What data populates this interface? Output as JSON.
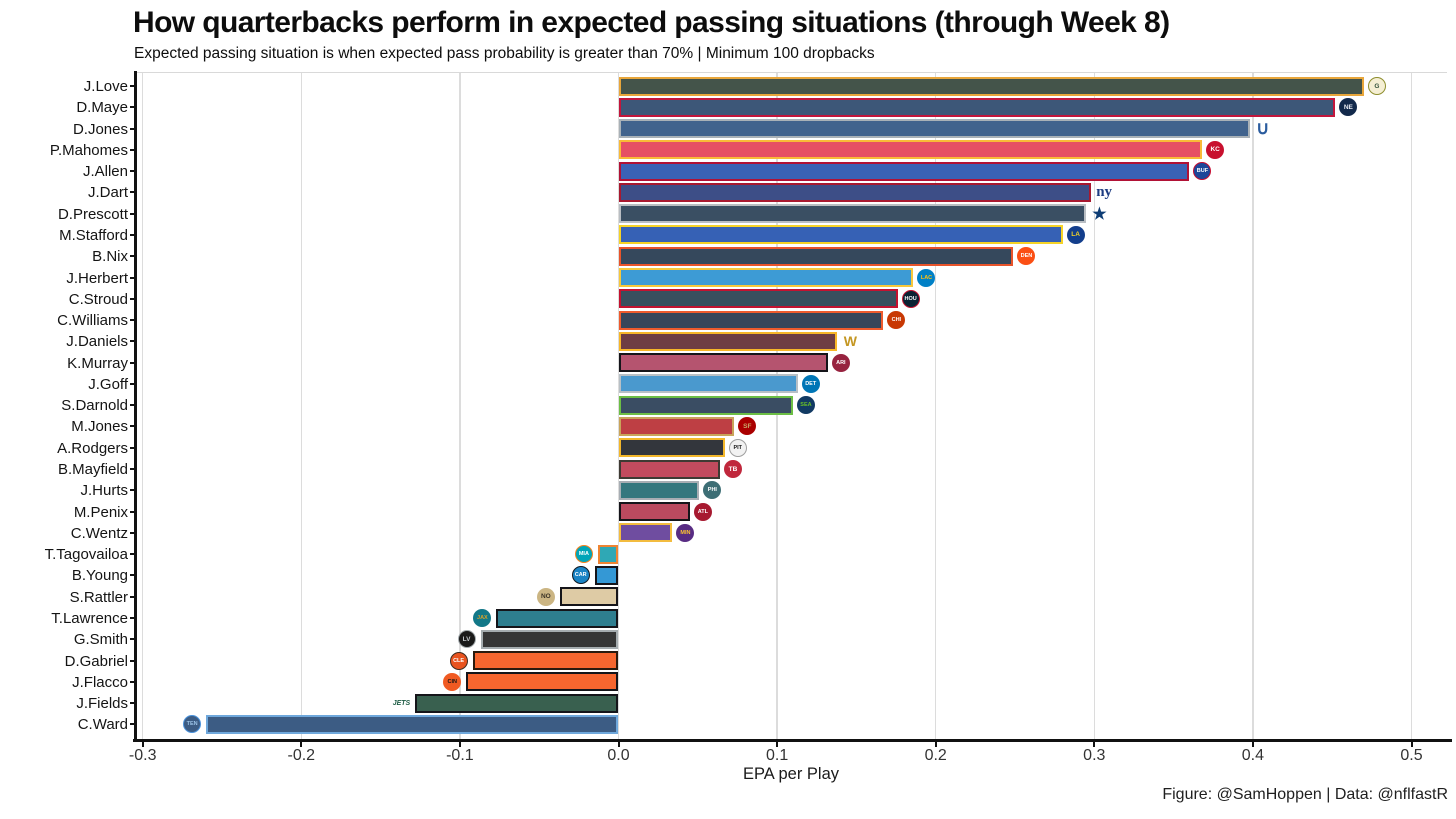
{
  "title": "How quarterbacks perform in expected passing situations (through Week 8)",
  "subtitle": "Expected passing situation is when expected pass probability is greater than 70% | Minimum 100 dropbacks",
  "caption": "Figure: @SamHoppen | Data: @nflfastR",
  "chart_data": {
    "type": "bar",
    "orientation": "horizontal",
    "title": "How quarterbacks perform in expected passing situations (through Week 8)",
    "subtitle": "Expected passing situation is when expected pass probability is greater than 70% | Minimum 100 dropbacks",
    "xlabel": "EPA per Play",
    "ylabel": "",
    "xlim": [
      -0.3,
      0.5
    ],
    "grid": "vertical",
    "legend": "none",
    "xticks": [
      -0.3,
      -0.2,
      -0.1,
      0.0,
      0.1,
      0.2,
      0.3,
      0.4,
      0.5
    ],
    "categories": [
      "J.Love",
      "D.Maye",
      "D.Jones",
      "P.Mahomes",
      "J.Allen",
      "J.Dart",
      "D.Prescott",
      "M.Stafford",
      "B.Nix",
      "J.Herbert",
      "C.Stroud",
      "C.Williams",
      "J.Daniels",
      "K.Murray",
      "J.Goff",
      "S.Darnold",
      "M.Jones",
      "A.Rodgers",
      "B.Mayfield",
      "J.Hurts",
      "M.Penix",
      "C.Wentz",
      "T.Tagovailoa",
      "B.Young",
      "S.Rattler",
      "T.Lawrence",
      "G.Smith",
      "D.Gabriel",
      "J.Flacco",
      "J.Fields",
      "C.Ward"
    ],
    "values": [
      0.47,
      0.452,
      0.398,
      0.368,
      0.36,
      0.298,
      0.295,
      0.28,
      0.249,
      0.186,
      0.176,
      0.167,
      0.138,
      0.132,
      0.113,
      0.11,
      0.073,
      0.067,
      0.064,
      0.051,
      0.045,
      0.034,
      -0.013,
      -0.015,
      -0.037,
      -0.077,
      -0.087,
      -0.092,
      -0.096,
      -0.128,
      -0.26
    ],
    "players": [
      {
        "name": "J.Love",
        "team": "Green Bay Packers",
        "abbr": "GB",
        "value": 0.47,
        "fill": "#44544A",
        "outline": "#E8A63B",
        "logo": {
          "type": "circle",
          "label": "G",
          "bg": "#F5EFD4",
          "fg": "#33523B",
          "border": "#8E8E2E"
        }
      },
      {
        "name": "D.Maye",
        "team": "New England Patriots",
        "abbr": "NE",
        "value": 0.452,
        "fill": "#3D5778",
        "outline": "#C2163C",
        "logo": {
          "type": "circle",
          "label": "NE",
          "bg": "#12294B",
          "fg": "#E6E9F0"
        }
      },
      {
        "name": "D.Jones",
        "team": "Indianapolis Colts",
        "abbr": "IND",
        "value": 0.398,
        "fill": "#41638D",
        "outline": "#A9B1B7",
        "logo": {
          "type": "text",
          "label": "∪",
          "fg": "#2B5C9E",
          "size": 18
        }
      },
      {
        "name": "P.Mahomes",
        "team": "Kansas City Chiefs",
        "abbr": "KC",
        "value": 0.368,
        "fill": "#E64F64",
        "outline": "#F9BA38",
        "logo": {
          "type": "circle",
          "label": "KC",
          "bg": "#C8102E",
          "fg": "#FFFFFF"
        }
      },
      {
        "name": "J.Allen",
        "team": "Buffalo Bills",
        "abbr": "BUF",
        "value": 0.36,
        "fill": "#3A62B5",
        "outline": "#B11236",
        "logo": {
          "type": "circle",
          "label": "BUF",
          "bg": "#1D4699",
          "fg": "#FFFFFF",
          "border": "#C60C30"
        }
      },
      {
        "name": "J.Dart",
        "team": "New York Giants",
        "abbr": "NYG",
        "value": 0.298,
        "fill": "#3D4E87",
        "outline": "#A71930",
        "logo": {
          "type": "text",
          "label": "ny",
          "fg": "#1E3C82",
          "size": 15,
          "serif": true
        }
      },
      {
        "name": "D.Prescott",
        "team": "Dallas Cowboys",
        "abbr": "DAL",
        "value": 0.295,
        "fill": "#3A4F63",
        "outline": "#B9BEC3",
        "logo": {
          "type": "text",
          "label": "★",
          "fg": "#0E3D75",
          "size": 16
        }
      },
      {
        "name": "M.Stafford",
        "team": "Los Angeles Rams",
        "abbr": "LAR",
        "value": 0.28,
        "fill": "#3661B5",
        "outline": "#F5D327",
        "logo": {
          "type": "circle",
          "label": "LA",
          "bg": "#133E8C",
          "fg": "#F5D327"
        }
      },
      {
        "name": "B.Nix",
        "team": "Denver Broncos",
        "abbr": "DEN",
        "value": 0.249,
        "fill": "#35485C",
        "outline": "#E8542B",
        "logo": {
          "type": "circle",
          "label": "DEN",
          "bg": "#FB4F14",
          "fg": "#FFFFFF"
        }
      },
      {
        "name": "J.Herbert",
        "team": "Los Angeles Chargers",
        "abbr": "LAC",
        "value": 0.186,
        "fill": "#3D9BD5",
        "outline": "#F7C83C",
        "logo": {
          "type": "circle",
          "label": "LAC",
          "bg": "#0080C6",
          "fg": "#FFC20E"
        }
      },
      {
        "name": "C.Stroud",
        "team": "Houston Texans",
        "abbr": "HOU",
        "value": 0.176,
        "fill": "#384F5E",
        "outline": "#C41230",
        "logo": {
          "type": "circle",
          "label": "HOU",
          "bg": "#0B2233",
          "fg": "#FFFFFF",
          "border": "#C41230"
        }
      },
      {
        "name": "C.Williams",
        "team": "Chicago Bears",
        "abbr": "CHI",
        "value": 0.167,
        "fill": "#37465A",
        "outline": "#EE5B2E",
        "logo": {
          "type": "circle",
          "label": "CHI",
          "bg": "#C83803",
          "fg": "#FFFFFF"
        }
      },
      {
        "name": "J.Daniels",
        "team": "Washington Commanders",
        "abbr": "WAS",
        "value": 0.138,
        "fill": "#6E3D43",
        "outline": "#F7B628",
        "logo": {
          "type": "text",
          "label": "W",
          "fg": "#C49723",
          "size": 14
        }
      },
      {
        "name": "K.Murray",
        "team": "Arizona Cardinals",
        "abbr": "ARI",
        "value": 0.132,
        "fill": "#B5546F",
        "outline": "#15151A",
        "logo": {
          "type": "circle",
          "label": "ARI",
          "bg": "#97233F",
          "fg": "#FFFFFF"
        }
      },
      {
        "name": "J.Goff",
        "team": "Detroit Lions",
        "abbr": "DET",
        "value": 0.113,
        "fill": "#4A99CE",
        "outline": "#B8C0C6",
        "logo": {
          "type": "circle",
          "label": "DET",
          "bg": "#0076B6",
          "fg": "#FFFFFF"
        }
      },
      {
        "name": "S.Darnold",
        "team": "Seattle Seahawks",
        "abbr": "SEA",
        "value": 0.11,
        "fill": "#3A4D63",
        "outline": "#6CBE45",
        "logo": {
          "type": "circle",
          "label": "SEA",
          "bg": "#123A63",
          "fg": "#69BE28"
        }
      },
      {
        "name": "M.Jones",
        "team": "San Francisco 49ers",
        "abbr": "SF",
        "value": 0.073,
        "fill": "#BE3F44",
        "outline": "#C9A45A",
        "logo": {
          "type": "circle",
          "label": "SF",
          "bg": "#AA0000",
          "fg": "#C9AA6A"
        }
      },
      {
        "name": "A.Rodgers",
        "team": "Pittsburgh Steelers",
        "abbr": "PIT",
        "value": 0.067,
        "fill": "#33363C",
        "outline": "#F3B72B",
        "logo": {
          "type": "circle",
          "label": "PIT",
          "bg": "#F2F2F2",
          "fg": "#1A1A1A",
          "border": "#9E9E9E"
        }
      },
      {
        "name": "B.Mayfield",
        "team": "Tampa Bay Buccaneers",
        "abbr": "TB",
        "value": 0.064,
        "fill": "#C24B5E",
        "outline": "#3E3A33",
        "logo": {
          "type": "circle",
          "label": "TB",
          "bg": "#C0273C",
          "fg": "#FFFFFF"
        }
      },
      {
        "name": "J.Hurts",
        "team": "Philadelphia Eagles",
        "abbr": "PHI",
        "value": 0.051,
        "fill": "#34777E",
        "outline": "#A8AEB4",
        "logo": {
          "type": "circle",
          "label": "PHI",
          "bg": "#3D6E75",
          "fg": "#FFFFFF"
        }
      },
      {
        "name": "M.Penix",
        "team": "Atlanta Falcons",
        "abbr": "ATL",
        "value": 0.045,
        "fill": "#BA4A5F",
        "outline": "#15151A",
        "logo": {
          "type": "circle",
          "label": "ATL",
          "bg": "#A71930",
          "fg": "#FFFFFF"
        }
      },
      {
        "name": "C.Wentz",
        "team": "Minnesota Vikings",
        "abbr": "MIN",
        "value": 0.034,
        "fill": "#6F4DA0",
        "outline": "#F3BC3F",
        "logo": {
          "type": "circle",
          "label": "MIN",
          "bg": "#582C83",
          "fg": "#FFC62F"
        }
      },
      {
        "name": "T.Tagovailoa",
        "team": "Miami Dolphins",
        "abbr": "MIA",
        "value": -0.013,
        "fill": "#2FA8B5",
        "outline": "#EF8432",
        "logo": {
          "type": "circle",
          "label": "MIA",
          "bg": "#00A5B8",
          "fg": "#FFFFFF",
          "border": "#F58220"
        }
      },
      {
        "name": "B.Young",
        "team": "Carolina Panthers",
        "abbr": "CAR",
        "value": -0.015,
        "fill": "#3498D5",
        "outline": "#15151A",
        "logo": {
          "type": "circle",
          "label": "CAR",
          "bg": "#1A83C4",
          "fg": "#FFFFFF",
          "border": "#101820"
        }
      },
      {
        "name": "S.Rattler",
        "team": "New Orleans Saints",
        "abbr": "NO",
        "value": -0.037,
        "fill": "#DECBA5",
        "outline": "#15151A",
        "logo": {
          "type": "circle",
          "label": "NO",
          "bg": "#CBB583",
          "fg": "#3B3325"
        }
      },
      {
        "name": "T.Lawrence",
        "team": "Jacksonville Jaguars",
        "abbr": "JAX",
        "value": -0.077,
        "fill": "#2E7E8F",
        "outline": "#15151A",
        "logo": {
          "type": "circle",
          "label": "JAX",
          "bg": "#127888",
          "fg": "#D7A22A"
        }
      },
      {
        "name": "G.Smith",
        "team": "Las Vegas Raiders",
        "abbr": "LV",
        "value": -0.087,
        "fill": "#363636",
        "outline": "#A5ACAF",
        "logo": {
          "type": "circle",
          "label": "LV",
          "bg": "#1A1A1A",
          "fg": "#C4C9CC",
          "border": "#A5ACAF"
        }
      },
      {
        "name": "D.Gabriel",
        "team": "Cleveland Browns",
        "abbr": "CLE",
        "value": -0.092,
        "fill": "#F7662F",
        "outline": "#2B1A0E",
        "logo": {
          "type": "circle",
          "label": "CLE",
          "bg": "#E8531F",
          "fg": "#FFFFFF",
          "border": "#3E2B1F"
        }
      },
      {
        "name": "J.Flacco",
        "team": "Cincinnati Bengals",
        "abbr": "CIN",
        "value": -0.096,
        "fill": "#F7662F",
        "outline": "#15151A",
        "logo": {
          "type": "circle",
          "label": "CIN",
          "bg": "#F05A22",
          "fg": "#141414"
        }
      },
      {
        "name": "J.Fields",
        "team": "New York Jets",
        "abbr": "NYJ",
        "value": -0.128,
        "fill": "#39604F",
        "outline": "#15151A",
        "logo": {
          "type": "text",
          "label": "JETS",
          "fg": "#1E5C45",
          "size": 7,
          "italic": true
        }
      },
      {
        "name": "C.Ward",
        "team": "Tennessee Titans",
        "abbr": "TEN",
        "value": -0.26,
        "fill": "#3C5C84",
        "outline": "#6FA8DC",
        "logo": {
          "type": "circle",
          "label": "TEN",
          "bg": "#3C5C84",
          "fg": "#9CC4E8",
          "border": "#4B92DB"
        }
      }
    ]
  }
}
